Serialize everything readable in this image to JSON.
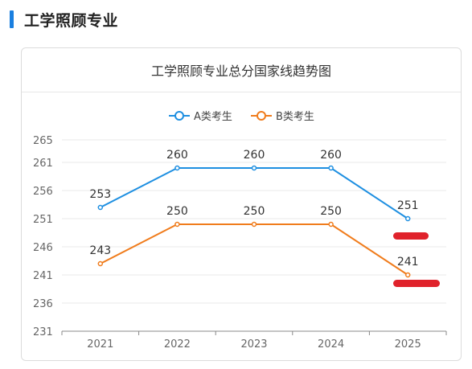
{
  "section": {
    "title": "工学照顾专业"
  },
  "card": {
    "title": "工学照顾专业总分国家线趋势图"
  },
  "chart_data": {
    "type": "line",
    "title": "工学照顾专业总分国家线趋势图",
    "categories": [
      "2021",
      "2022",
      "2023",
      "2024",
      "2025"
    ],
    "y_ticks": [
      "231",
      "236",
      "241",
      "246",
      "251",
      "256",
      "261",
      "265"
    ],
    "ylim": [
      231,
      265
    ],
    "grid": true,
    "legend_position": "top-center",
    "series": [
      {
        "name": "A类考生",
        "color": "#1e8fe1",
        "values": [
          253,
          260,
          260,
          260,
          251
        ]
      },
      {
        "name": "B类考生",
        "color": "#f07c1c",
        "values": [
          243,
          250,
          250,
          250,
          241
        ]
      }
    ],
    "redaction_color": "#e0222b"
  }
}
